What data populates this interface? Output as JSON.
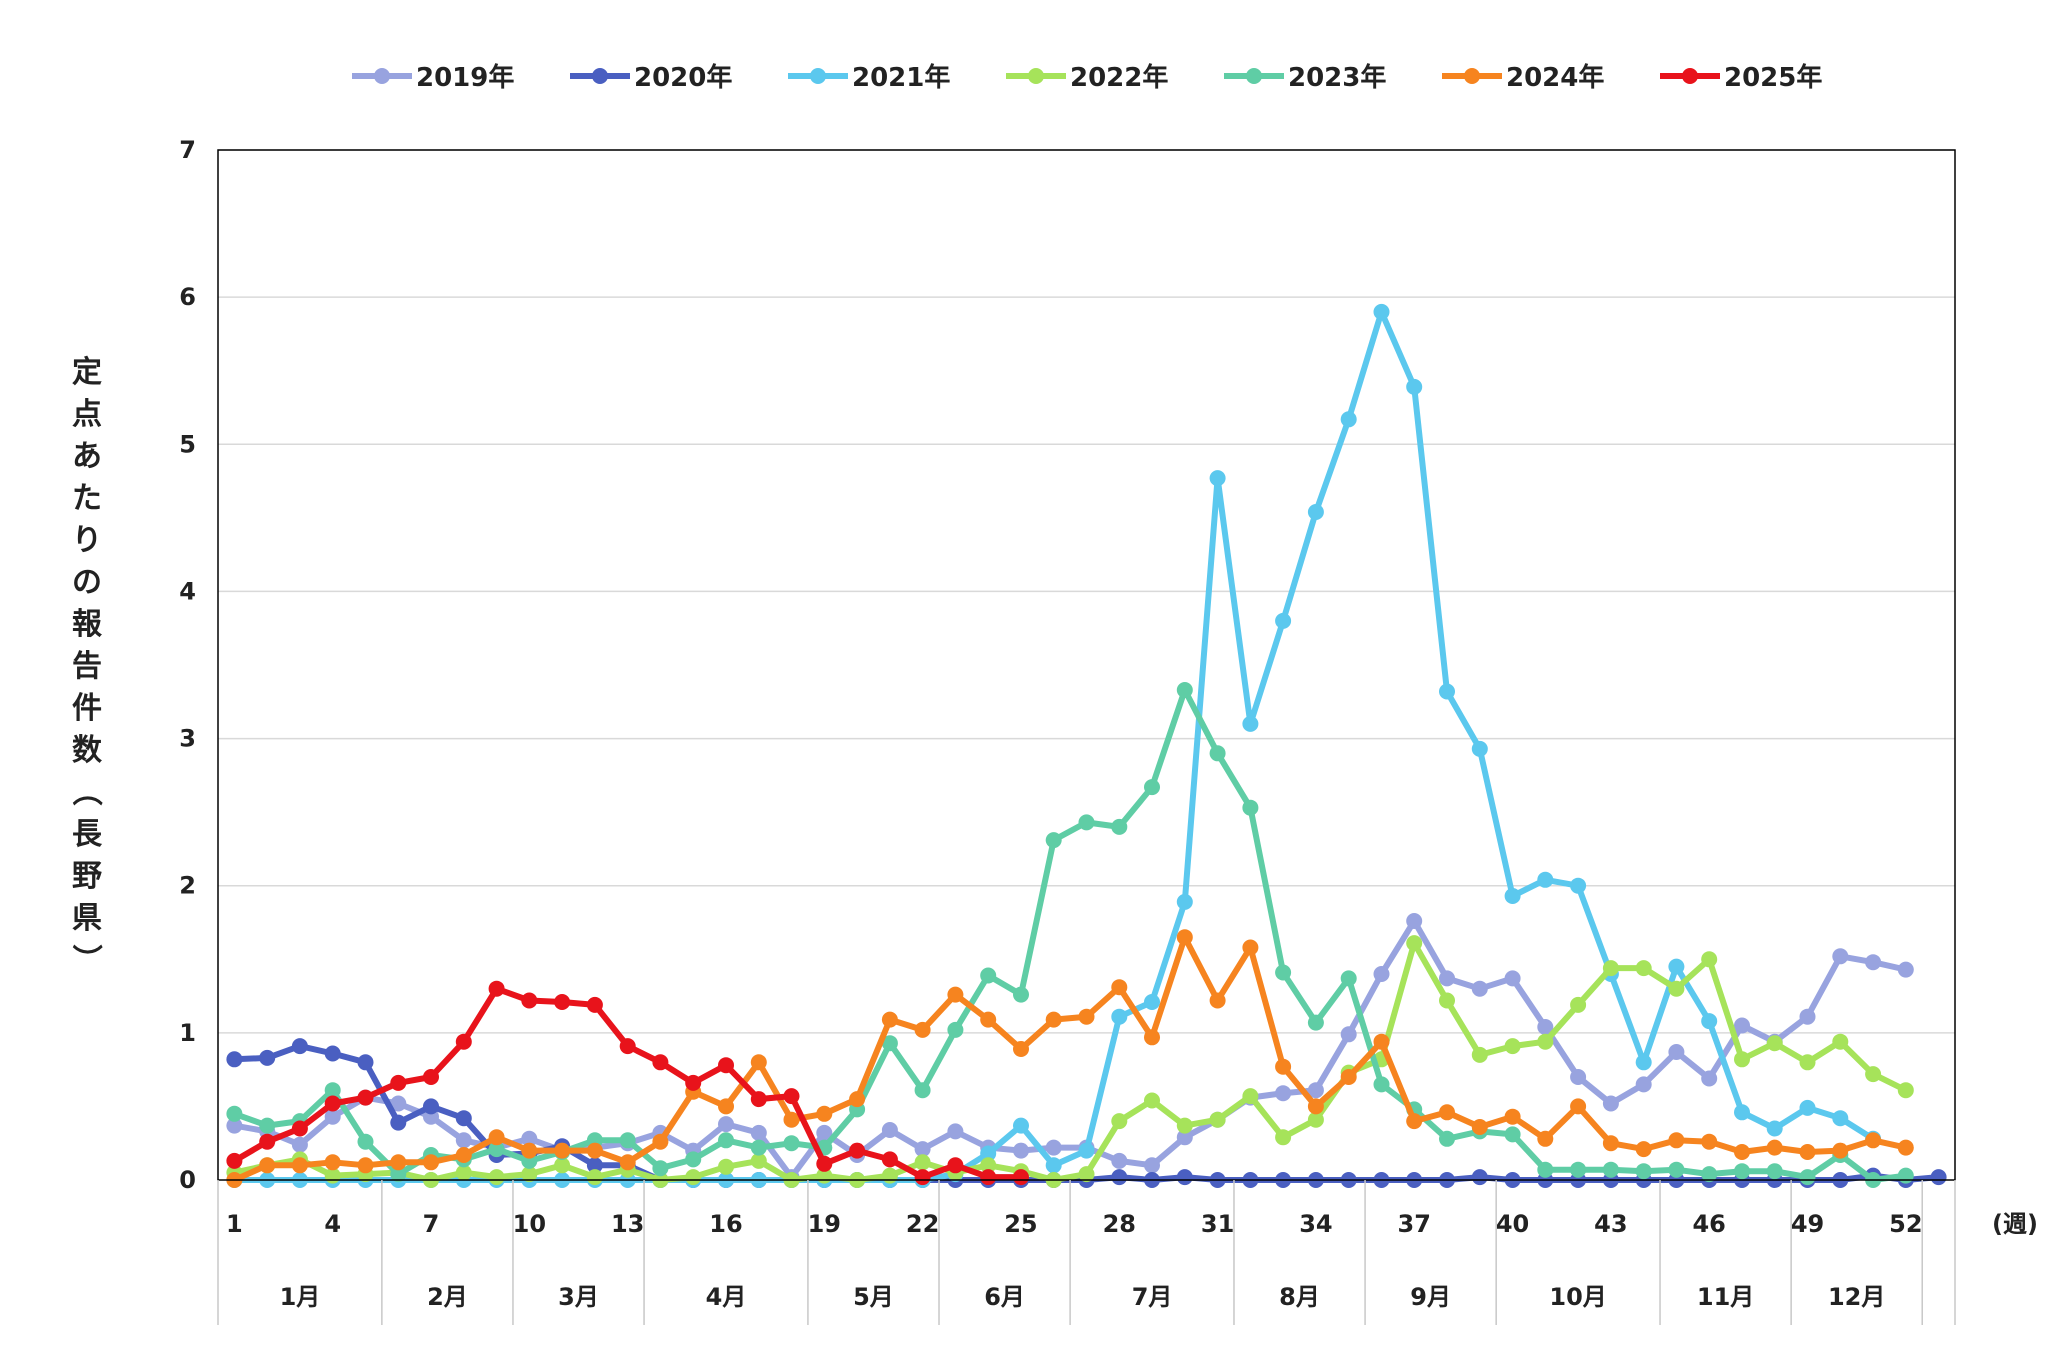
{
  "chart_data": {
    "type": "line",
    "ylabel": "定点あたりの報告件数（長野県）",
    "xunit": "(週)",
    "ylim": [
      0,
      7
    ],
    "yticks": [
      0,
      1,
      2,
      3,
      4,
      5,
      6,
      7
    ],
    "x": [
      1,
      2,
      3,
      4,
      5,
      6,
      7,
      8,
      9,
      10,
      11,
      12,
      13,
      14,
      15,
      16,
      17,
      18,
      19,
      20,
      21,
      22,
      23,
      24,
      25,
      26,
      27,
      28,
      29,
      30,
      31,
      32,
      33,
      34,
      35,
      36,
      37,
      38,
      39,
      40,
      41,
      42,
      43,
      44,
      45,
      46,
      47,
      48,
      49,
      50,
      51,
      52,
      53
    ],
    "xticks": [
      "1",
      "4",
      "7",
      "10",
      "13",
      "16",
      "19",
      "22",
      "25",
      "28",
      "31",
      "34",
      "37",
      "40",
      "43",
      "46",
      "49",
      "52"
    ],
    "months": [
      {
        "label": "1月",
        "start": 0.5,
        "end": 5.5
      },
      {
        "label": "2月",
        "start": 5.5,
        "end": 9.5
      },
      {
        "label": "3月",
        "start": 9.5,
        "end": 13.5
      },
      {
        "label": "4月",
        "start": 13.5,
        "end": 18.5
      },
      {
        "label": "5月",
        "start": 18.5,
        "end": 22.5
      },
      {
        "label": "6月",
        "start": 22.5,
        "end": 26.5
      },
      {
        "label": "7月",
        "start": 26.5,
        "end": 31.5
      },
      {
        "label": "8月",
        "start": 31.5,
        "end": 35.5
      },
      {
        "label": "9月",
        "start": 35.5,
        "end": 39.5
      },
      {
        "label": "10月",
        "start": 39.5,
        "end": 44.5
      },
      {
        "label": "11月",
        "start": 44.5,
        "end": 48.5
      },
      {
        "label": "12月",
        "start": 48.5,
        "end": 52.5
      }
    ],
    "grid": true,
    "legend": "top",
    "series": [
      {
        "name": "2019年",
        "color": "#98A3DF",
        "values": [
          0.37,
          0.33,
          0.24,
          0.43,
          0.56,
          0.52,
          0.43,
          0.27,
          0.22,
          0.28,
          0.2,
          0.22,
          0.25,
          0.32,
          0.2,
          0.38,
          0.32,
          0.02,
          0.32,
          0.17,
          0.34,
          0.21,
          0.33,
          0.22,
          0.2,
          0.22,
          0.22,
          0.13,
          0.1,
          0.29,
          0.41,
          0.56,
          0.59,
          0.61,
          0.99,
          1.4,
          1.76,
          1.37,
          1.3,
          1.37,
          1.04,
          0.7,
          0.52,
          0.65,
          0.87,
          0.69,
          1.05,
          0.94,
          1.11,
          1.52,
          1.48,
          1.43,
          null
        ]
      },
      {
        "name": "2020年",
        "color": "#4A5FC1",
        "values": [
          0.82,
          0.83,
          0.91,
          0.86,
          0.8,
          0.39,
          0.5,
          0.42,
          0.17,
          0.18,
          0.23,
          0.1,
          0.1,
          0.0,
          0.0,
          0.0,
          0.0,
          0.0,
          0.0,
          0.0,
          0.0,
          0.0,
          0.0,
          0.0,
          0.0,
          0.0,
          0.0,
          0.02,
          0.0,
          0.02,
          0.0,
          0.0,
          0.0,
          0.0,
          0.0,
          0.0,
          0.0,
          0.0,
          0.02,
          0.0,
          0.0,
          0.0,
          0.0,
          0.0,
          0.0,
          0.0,
          0.0,
          0.0,
          0.0,
          0.0,
          0.03,
          0.0,
          0.02
        ]
      },
      {
        "name": "2021年",
        "color": "#5BC8EE",
        "values": [
          0.0,
          0.0,
          0.0,
          0.0,
          0.0,
          0.0,
          0.0,
          0.0,
          0.0,
          0.0,
          0.0,
          0.0,
          0.0,
          0.0,
          0.0,
          0.0,
          0.0,
          0.0,
          0.0,
          0.0,
          0.0,
          0.0,
          0.04,
          0.18,
          0.37,
          0.1,
          0.2,
          1.11,
          1.21,
          1.89,
          4.77,
          3.1,
          3.8,
          4.54,
          5.17,
          5.9,
          5.39,
          3.32,
          2.93,
          1.93,
          2.04,
          2.0,
          1.4,
          0.8,
          1.45,
          1.08,
          0.46,
          0.35,
          0.49,
          0.42,
          0.28,
          null,
          null
        ]
      },
      {
        "name": "2022年",
        "color": "#A6E35A",
        "values": [
          0.05,
          0.1,
          0.14,
          0.03,
          0.04,
          0.05,
          0.0,
          0.05,
          0.02,
          0.04,
          0.1,
          0.02,
          0.07,
          0.0,
          0.02,
          0.09,
          0.13,
          0.0,
          0.03,
          0.0,
          0.03,
          0.12,
          0.05,
          0.1,
          0.06,
          0.0,
          0.04,
          0.4,
          0.54,
          0.37,
          0.41,
          0.57,
          0.29,
          0.41,
          0.73,
          0.82,
          1.61,
          1.22,
          0.85,
          0.91,
          0.94,
          1.19,
          1.44,
          1.44,
          1.3,
          1.5,
          0.82,
          0.93,
          0.8,
          0.94,
          0.72,
          0.61,
          null
        ]
      },
      {
        "name": "2023年",
        "color": "#5FCDA5",
        "values": [
          0.45,
          0.37,
          0.4,
          0.61,
          0.26,
          0.04,
          0.17,
          0.14,
          0.21,
          0.13,
          0.19,
          0.27,
          0.27,
          0.08,
          0.14,
          0.27,
          0.22,
          0.25,
          0.22,
          0.48,
          0.93,
          0.61,
          1.02,
          1.39,
          1.26,
          2.31,
          2.43,
          2.4,
          2.67,
          3.33,
          2.9,
          2.53,
          1.41,
          1.07,
          1.37,
          0.65,
          0.48,
          0.28,
          0.33,
          0.31,
          0.07,
          0.07,
          0.07,
          0.06,
          0.07,
          0.04,
          0.06,
          0.06,
          0.02,
          0.17,
          0.0,
          0.03,
          null
        ]
      },
      {
        "name": "2024年",
        "color": "#F6841F",
        "values": [
          0.0,
          0.1,
          0.1,
          0.12,
          0.1,
          0.12,
          0.12,
          0.17,
          0.29,
          0.2,
          0.2,
          0.2,
          0.12,
          0.26,
          0.6,
          0.5,
          0.8,
          0.41,
          0.45,
          0.55,
          1.09,
          1.02,
          1.26,
          1.09,
          0.89,
          1.09,
          1.11,
          1.31,
          0.97,
          1.65,
          1.22,
          1.58,
          0.77,
          0.5,
          0.7,
          0.94,
          0.4,
          0.46,
          0.36,
          0.43,
          0.28,
          0.5,
          0.25,
          0.21,
          0.27,
          0.26,
          0.19,
          0.22,
          0.19,
          0.2,
          0.27,
          0.22,
          null
        ]
      },
      {
        "name": "2025年",
        "color": "#E8131B",
        "values": [
          0.13,
          0.26,
          0.35,
          0.52,
          0.56,
          0.66,
          0.7,
          0.94,
          1.3,
          1.22,
          1.21,
          1.19,
          0.91,
          0.8,
          0.66,
          0.78,
          0.55,
          0.57,
          0.11,
          0.2,
          0.14,
          0.02,
          0.1,
          0.02,
          0.02,
          null,
          null,
          null,
          null,
          null,
          null,
          null,
          null,
          null,
          null,
          null,
          null,
          null,
          null,
          null,
          null,
          null,
          null,
          null,
          null,
          null,
          null,
          null,
          null,
          null,
          null,
          null,
          null
        ]
      }
    ]
  }
}
